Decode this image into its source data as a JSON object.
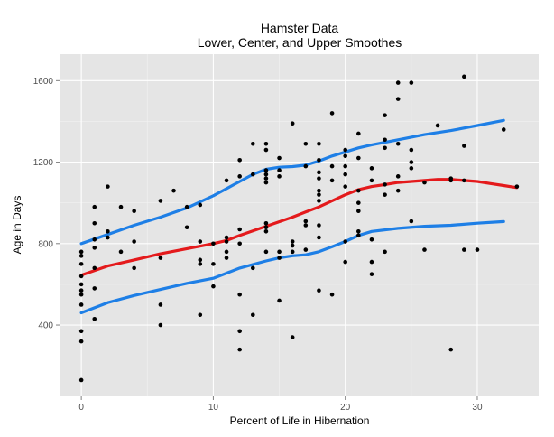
{
  "chart_data": {
    "type": "scatter",
    "title": "Hamster Data",
    "subtitle": "Lower, Center, and Upper Smoothes",
    "xlabel": "Percent of Life in Hibernation",
    "ylabel": "Age in Days",
    "xlim": [
      -1.65,
      34.65
    ],
    "ylim": [
      50,
      1730
    ],
    "xticks": [
      0,
      10,
      20,
      30
    ],
    "yticks": [
      400,
      800,
      1200,
      1600
    ],
    "grid": true,
    "panel_background": "#e5e5e5",
    "grid_color": "#ffffff",
    "point_color": "#000000",
    "points": [
      [
        0,
        130
      ],
      [
        0,
        320
      ],
      [
        0,
        370
      ],
      [
        0,
        500
      ],
      [
        0,
        550
      ],
      [
        0,
        570
      ],
      [
        0,
        600
      ],
      [
        0,
        640
      ],
      [
        0,
        700
      ],
      [
        0,
        740
      ],
      [
        0,
        760
      ],
      [
        1,
        430
      ],
      [
        1,
        580
      ],
      [
        1,
        680
      ],
      [
        1,
        780
      ],
      [
        1,
        820
      ],
      [
        1,
        900
      ],
      [
        1,
        980
      ],
      [
        2,
        830
      ],
      [
        2,
        860
      ],
      [
        2,
        1080
      ],
      [
        3,
        760
      ],
      [
        3,
        980
      ],
      [
        4,
        680
      ],
      [
        4,
        810
      ],
      [
        4,
        960
      ],
      [
        6,
        400
      ],
      [
        6,
        500
      ],
      [
        6,
        730
      ],
      [
        6,
        1010
      ],
      [
        7,
        1060
      ],
      [
        8,
        880
      ],
      [
        8,
        980
      ],
      [
        9,
        450
      ],
      [
        9,
        700
      ],
      [
        9,
        720
      ],
      [
        9,
        810
      ],
      [
        9,
        990
      ],
      [
        10,
        590
      ],
      [
        10,
        700
      ],
      [
        10,
        800
      ],
      [
        11,
        730
      ],
      [
        11,
        760
      ],
      [
        11,
        810
      ],
      [
        11,
        830
      ],
      [
        11,
        1110
      ],
      [
        12,
        280
      ],
      [
        12,
        370
      ],
      [
        12,
        550
      ],
      [
        12,
        800
      ],
      [
        12,
        870
      ],
      [
        12,
        1130
      ],
      [
        12,
        1210
      ],
      [
        13,
        450
      ],
      [
        13,
        680
      ],
      [
        13,
        1140
      ],
      [
        13,
        1290
      ],
      [
        14,
        760
      ],
      [
        14,
        860
      ],
      [
        14,
        880
      ],
      [
        14,
        900
      ],
      [
        14,
        1100
      ],
      [
        14,
        1120
      ],
      [
        14,
        1140
      ],
      [
        14,
        1160
      ],
      [
        14,
        1260
      ],
      [
        14,
        1290
      ],
      [
        15,
        520
      ],
      [
        15,
        730
      ],
      [
        15,
        760
      ],
      [
        15,
        1130
      ],
      [
        15,
        1160
      ],
      [
        15,
        1220
      ],
      [
        16,
        340
      ],
      [
        16,
        760
      ],
      [
        16,
        790
      ],
      [
        16,
        810
      ],
      [
        16,
        1390
      ],
      [
        17,
        770
      ],
      [
        17,
        890
      ],
      [
        17,
        910
      ],
      [
        17,
        1180
      ],
      [
        17,
        1290
      ],
      [
        18,
        570
      ],
      [
        18,
        830
      ],
      [
        18,
        890
      ],
      [
        18,
        1010
      ],
      [
        18,
        1040
      ],
      [
        18,
        1060
      ],
      [
        18,
        1120
      ],
      [
        18,
        1150
      ],
      [
        18,
        1210
      ],
      [
        18,
        1290
      ],
      [
        19,
        550
      ],
      [
        19,
        1110
      ],
      [
        19,
        1180
      ],
      [
        19,
        1440
      ],
      [
        20,
        710
      ],
      [
        20,
        810
      ],
      [
        20,
        1080
      ],
      [
        20,
        1140
      ],
      [
        20,
        1180
      ],
      [
        20,
        1230
      ],
      [
        20,
        1260
      ],
      [
        21,
        840
      ],
      [
        21,
        860
      ],
      [
        21,
        960
      ],
      [
        21,
        1000
      ],
      [
        21,
        1060
      ],
      [
        21,
        1220
      ],
      [
        21,
        1340
      ],
      [
        22,
        650
      ],
      [
        22,
        710
      ],
      [
        22,
        820
      ],
      [
        22,
        1110
      ],
      [
        22,
        1170
      ],
      [
        23,
        760
      ],
      [
        23,
        1040
      ],
      [
        23,
        1090
      ],
      [
        23,
        1270
      ],
      [
        23,
        1310
      ],
      [
        23,
        1430
      ],
      [
        24,
        1060
      ],
      [
        24,
        1130
      ],
      [
        24,
        1290
      ],
      [
        24,
        1510
      ],
      [
        24,
        1590
      ],
      [
        25,
        910
      ],
      [
        25,
        1170
      ],
      [
        25,
        1200
      ],
      [
        25,
        1260
      ],
      [
        25,
        1590
      ],
      [
        26,
        770
      ],
      [
        26,
        1100
      ],
      [
        27,
        1380
      ],
      [
        28,
        280
      ],
      [
        28,
        1110
      ],
      [
        28,
        1120
      ],
      [
        29,
        770
      ],
      [
        29,
        1110
      ],
      [
        29,
        1280
      ],
      [
        29,
        1620
      ],
      [
        30,
        770
      ],
      [
        32,
        1360
      ],
      [
        33,
        1080
      ]
    ],
    "series": [
      {
        "color": "#1e7fe6",
        "x": [
          0,
          2,
          4,
          6,
          8,
          10,
          12,
          13,
          14,
          15,
          16,
          17,
          18,
          19,
          20,
          21,
          22,
          24,
          26,
          28,
          30,
          32
        ],
        "y": [
          800,
          845,
          890,
          930,
          975,
          1035,
          1105,
          1140,
          1165,
          1175,
          1178,
          1185,
          1205,
          1230,
          1250,
          1270,
          1285,
          1310,
          1335,
          1355,
          1380,
          1405
        ]
      },
      {
        "color": "#e41a1c",
        "x": [
          0,
          2,
          4,
          6,
          8,
          10,
          11,
          12,
          14,
          16,
          17,
          18,
          19,
          20,
          21,
          22,
          23,
          24,
          26,
          27,
          28,
          29,
          30,
          31,
          32,
          33
        ],
        "y": [
          645,
          690,
          720,
          750,
          775,
          800,
          815,
          840,
          885,
          930,
          955,
          980,
          1010,
          1040,
          1065,
          1080,
          1090,
          1100,
          1110,
          1115,
          1115,
          1110,
          1105,
          1095,
          1085,
          1075
        ]
      },
      {
        "color": "#1e7fe6",
        "x": [
          0,
          2,
          4,
          6,
          8,
          10,
          12,
          14,
          15,
          16,
          17,
          18,
          19,
          20,
          21,
          22,
          24,
          26,
          28,
          30,
          32
        ],
        "y": [
          460,
          510,
          545,
          575,
          605,
          630,
          680,
          715,
          730,
          740,
          745,
          760,
          785,
          810,
          840,
          860,
          875,
          885,
          890,
          900,
          908
        ]
      }
    ]
  }
}
